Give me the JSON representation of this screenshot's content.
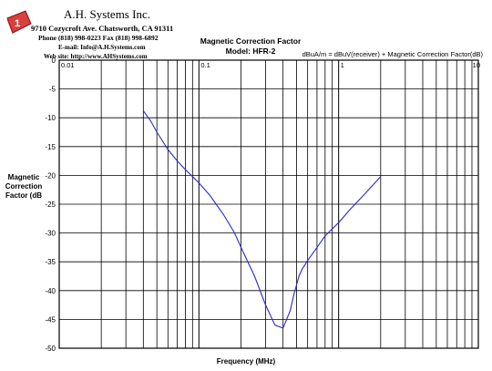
{
  "company": {
    "name": "A.H. Systems Inc.",
    "address": "9710 Cozycroft Ave. Chatsworth, CA 91311",
    "phone": "Phone (818) 998-0223 Fax (818) 998-6892",
    "email": "E-mail: Info@A.H.Systems.com",
    "web": "Web site: http://www.AHSystems.com",
    "logo_text": "1"
  },
  "chart_data": {
    "type": "line",
    "title_line1": "Magnetic Correction Factor",
    "title_line2": "Model: HFR-2",
    "formula": "dBuA/m = dBuV(receiver) + Magnetic Correction Factor(dB)",
    "xlabel": "Frequency (MHz)",
    "ylabel": [
      "Magnetic",
      "Correction",
      "Factor (dB"
    ],
    "x_scale": "log",
    "xlim": [
      0.01,
      10
    ],
    "ylim": [
      -50,
      0
    ],
    "y_ticks": [
      0,
      -5,
      -10,
      -15,
      -20,
      -25,
      -30,
      -35,
      -40,
      -45,
      -50
    ],
    "x_tick_labels": [
      "0.01",
      "0.1",
      "1",
      "10"
    ],
    "x_ticks": [
      0.01,
      0.1,
      1,
      10
    ],
    "grid": true,
    "line_color": "#2a2ad0",
    "series": [
      {
        "x": [
          0.04,
          0.045,
          0.05,
          0.06,
          0.07,
          0.08,
          0.09,
          0.1,
          0.12,
          0.15,
          0.18,
          0.2,
          0.25,
          0.3,
          0.35,
          0.4,
          0.45,
          0.48,
          0.5,
          0.52,
          0.55,
          0.6,
          0.7,
          0.8,
          1,
          1.2,
          1.5,
          2
        ],
        "y": [
          -8.8,
          -10.5,
          -12.5,
          -15.5,
          -17.5,
          -19,
          -20.2,
          -21.3,
          -23.5,
          -26.8,
          -30,
          -32.5,
          -37.5,
          -42.5,
          -46,
          -46.5,
          -43.5,
          -40.5,
          -39,
          -37.5,
          -36.2,
          -34.8,
          -32.5,
          -30.5,
          -28.2,
          -26,
          -23.5,
          -20.2
        ]
      }
    ]
  }
}
